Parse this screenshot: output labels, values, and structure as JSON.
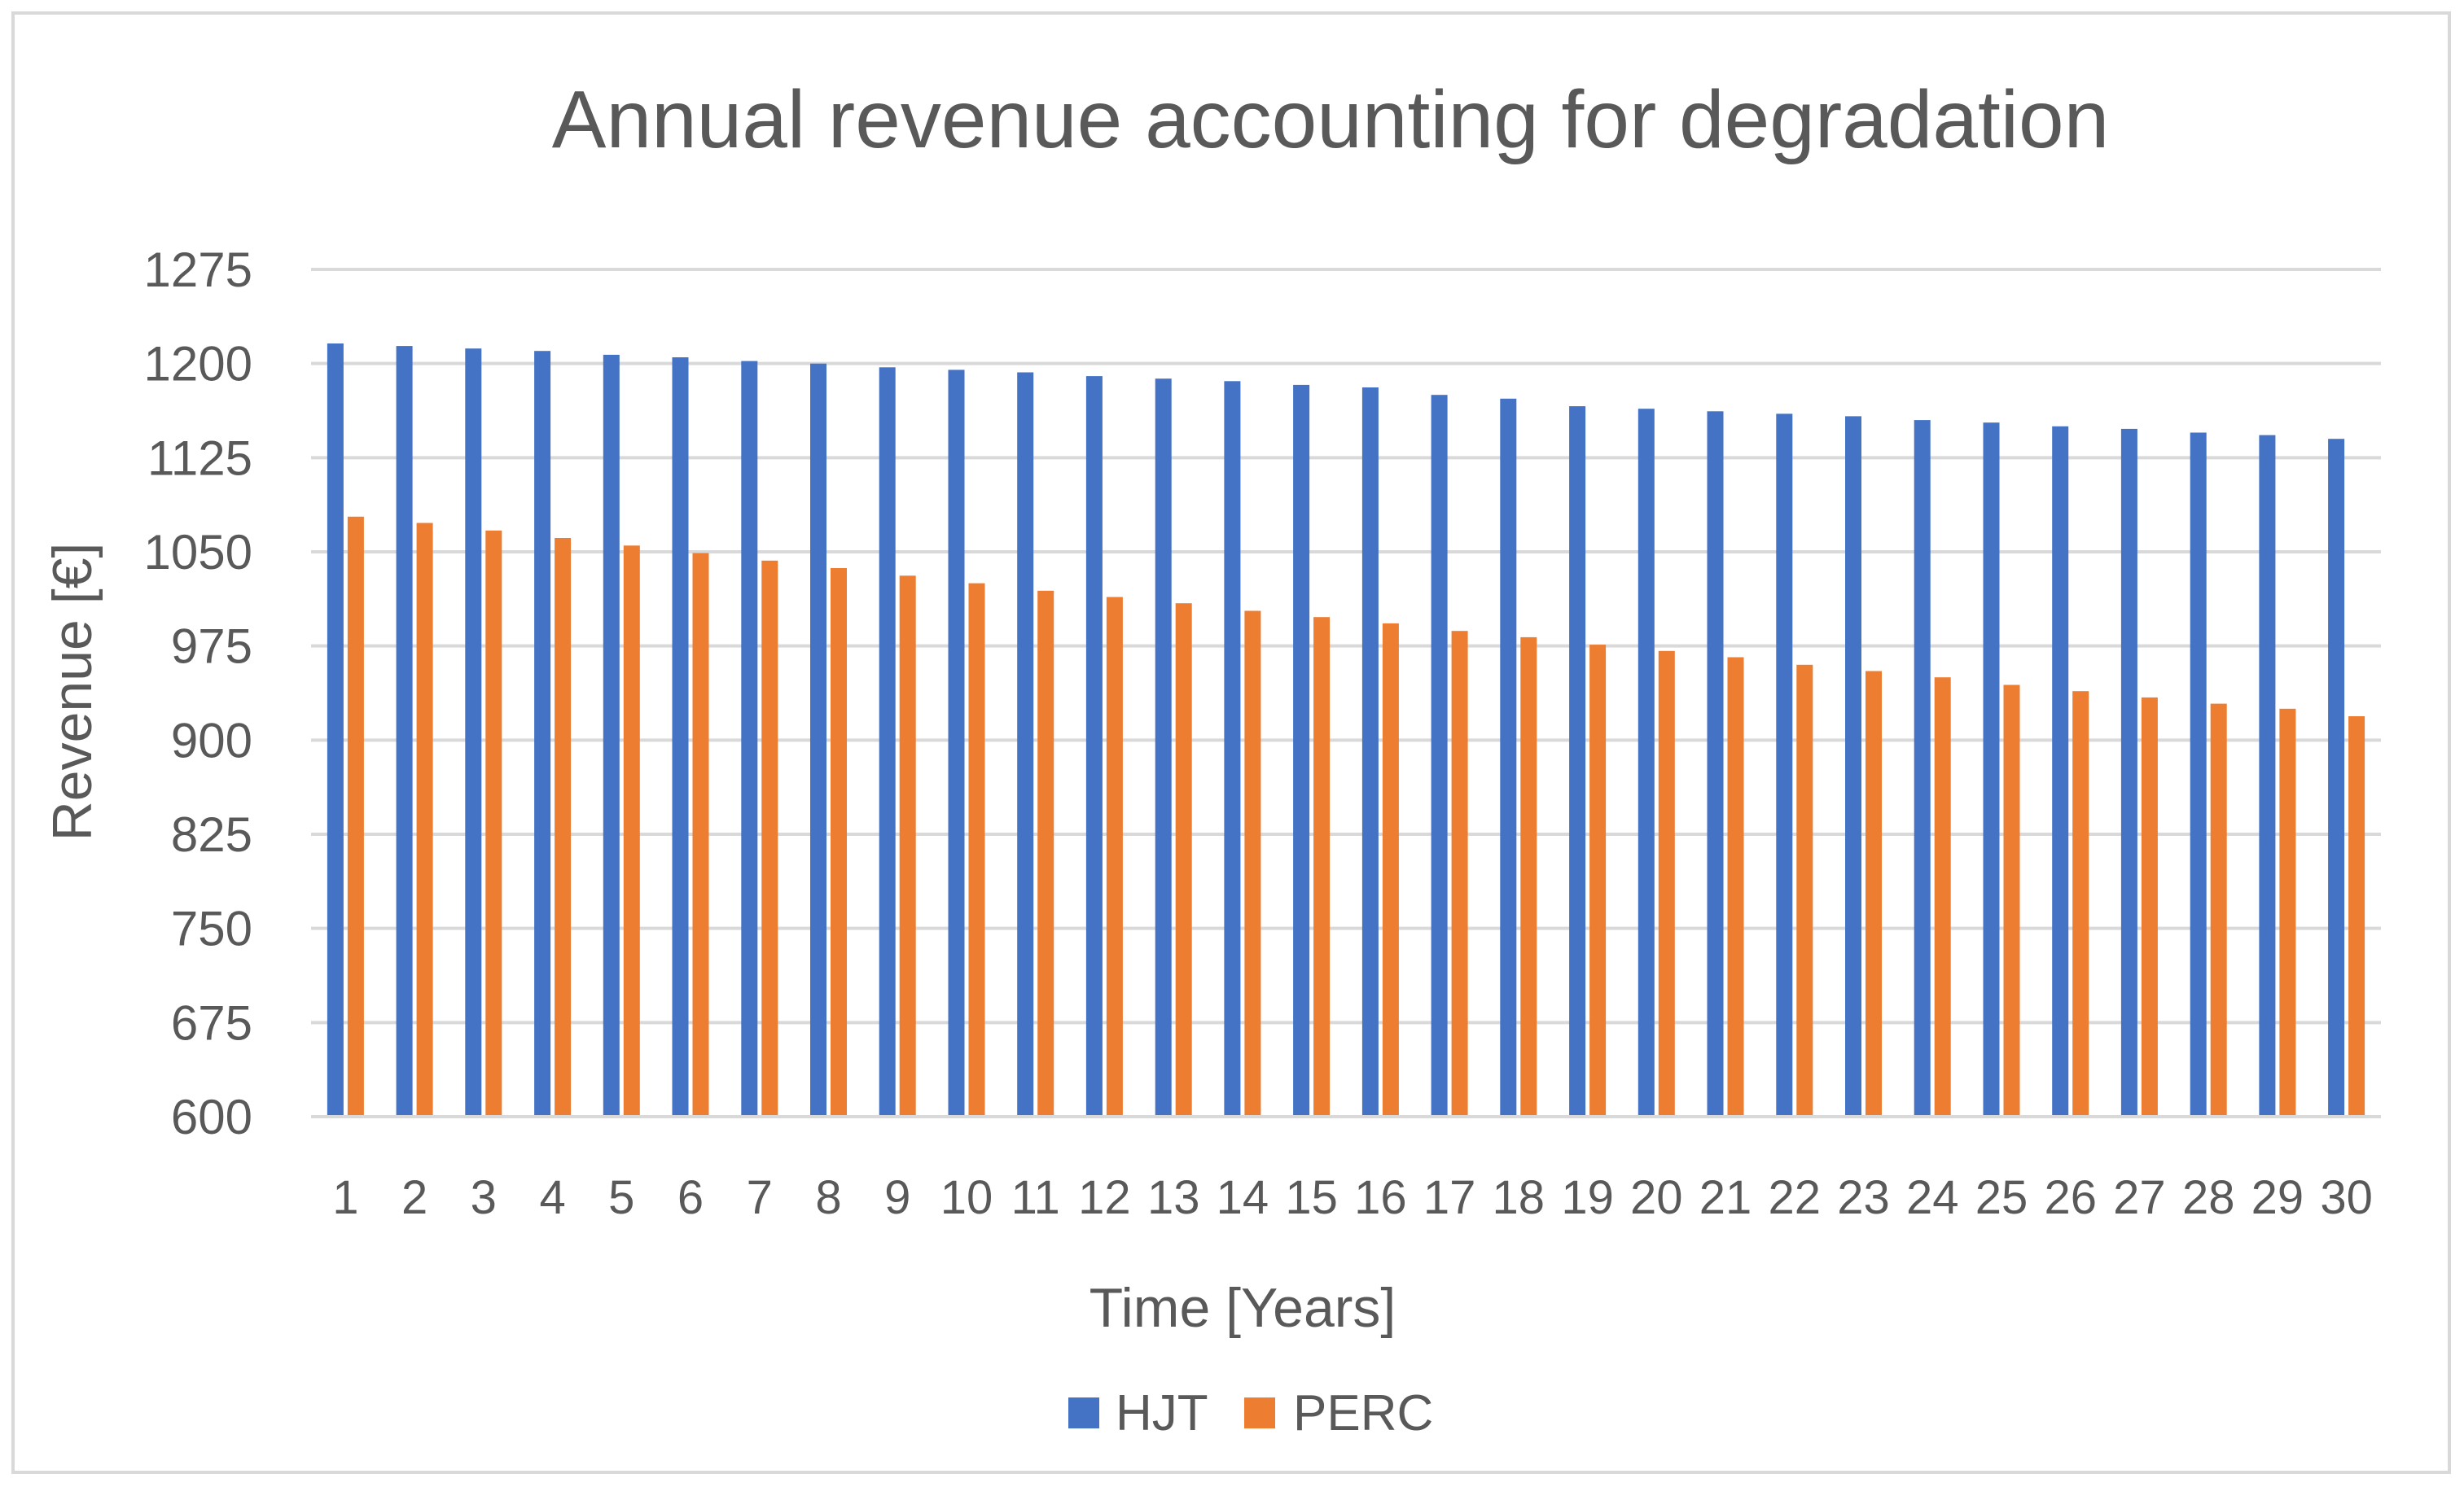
{
  "chart_data": {
    "type": "bar",
    "title": "Annual revenue accounting for degradation",
    "xlabel": "Time [Years]",
    "ylabel": "Revenue [€]",
    "ylim": [
      600,
      1275
    ],
    "yticks": [
      600,
      675,
      750,
      825,
      900,
      975,
      1050,
      1125,
      1200,
      1275
    ],
    "grid": true,
    "legend_position": "bottom",
    "categories": [
      "1",
      "2",
      "3",
      "4",
      "5",
      "6",
      "7",
      "8",
      "9",
      "10",
      "11",
      "12",
      "13",
      "14",
      "15",
      "16",
      "17",
      "18",
      "19",
      "20",
      "21",
      "22",
      "23",
      "24",
      "25",
      "26",
      "27",
      "28",
      "29",
      "30"
    ],
    "series": [
      {
        "name": "HJT",
        "color": "#4472c4",
        "values": [
          1216,
          1214,
          1212,
          1210,
          1207,
          1205,
          1202,
          1200,
          1197,
          1195,
          1193,
          1190,
          1188,
          1186,
          1183,
          1181,
          1175,
          1172,
          1166,
          1164,
          1162,
          1160,
          1158,
          1155,
          1153,
          1150,
          1148,
          1145,
          1143,
          1140
        ]
      },
      {
        "name": "PERC",
        "color": "#ed7d31",
        "values": [
          1078,
          1073,
          1067,
          1061,
          1055,
          1049,
          1043,
          1037,
          1031,
          1025,
          1019,
          1014,
          1009,
          1003,
          998,
          993,
          987,
          982,
          976,
          971,
          966,
          960,
          955,
          950,
          944,
          939,
          934,
          929,
          925,
          919
        ]
      }
    ]
  }
}
